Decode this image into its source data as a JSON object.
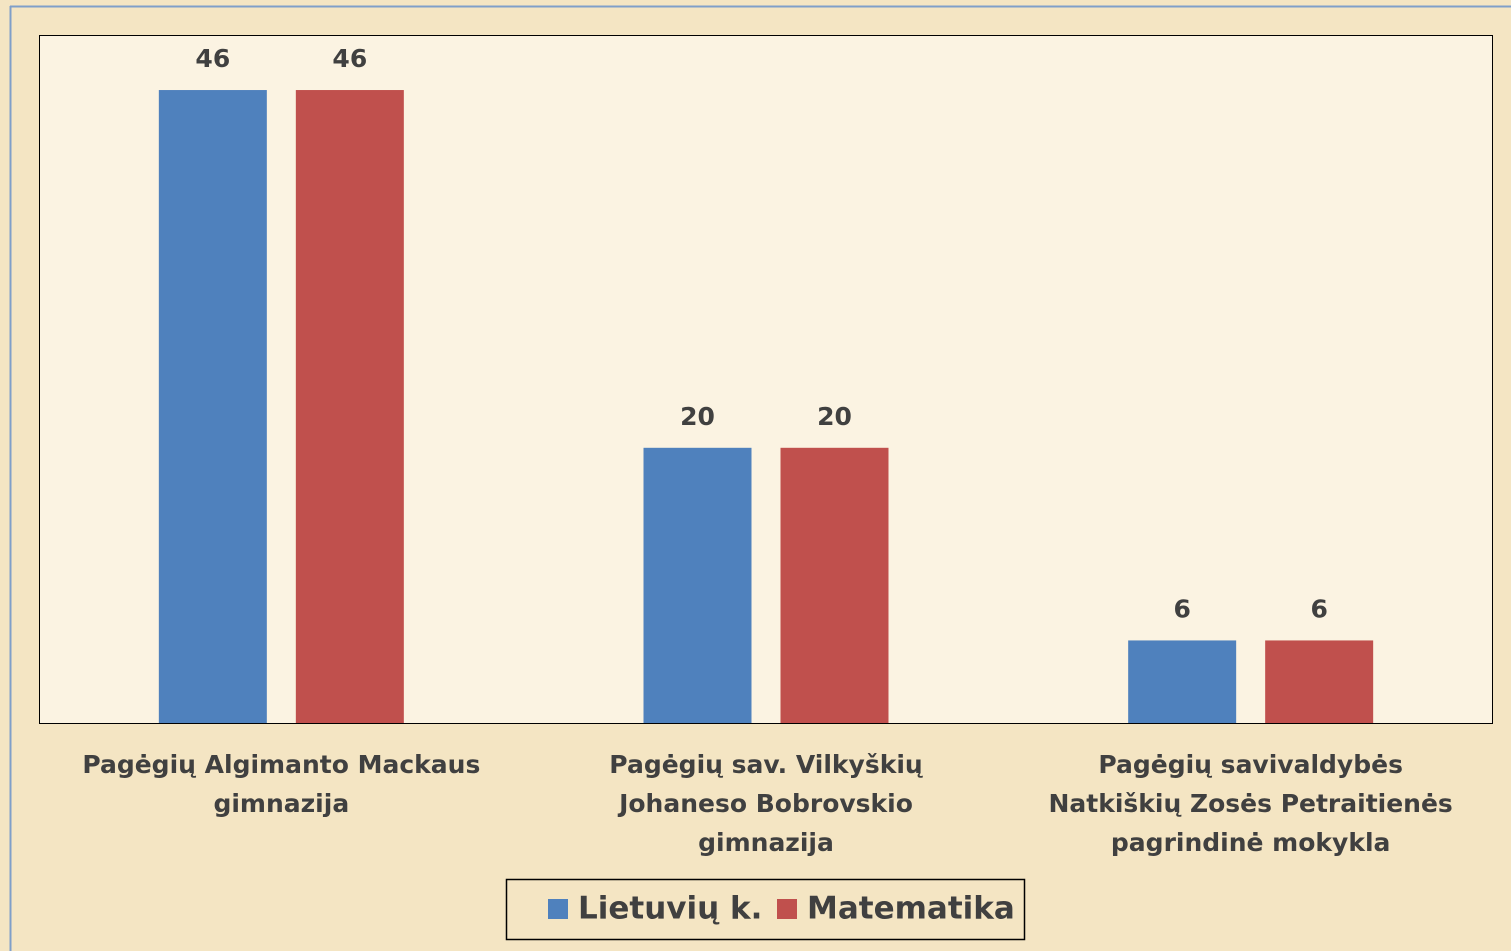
{
  "chart_data": {
    "type": "bar",
    "categories": [
      "Pagėgių Algimanto Mackaus gimnazija",
      "Pagėgių sav. Vilkyškių Johaneso Bobrovskio gimnazija",
      "Pagėgių savivaldybės Natkiškių Zosės Petraitienės pagrindinė mokykla"
    ],
    "series": [
      {
        "name": "Lietuvių k.",
        "color": "#4f81bd",
        "values": [
          46,
          20,
          6
        ]
      },
      {
        "name": "Matematika",
        "color": "#c0504d",
        "values": [
          46,
          20,
          6
        ]
      }
    ],
    "ylim": [
      0,
      50
    ]
  }
}
